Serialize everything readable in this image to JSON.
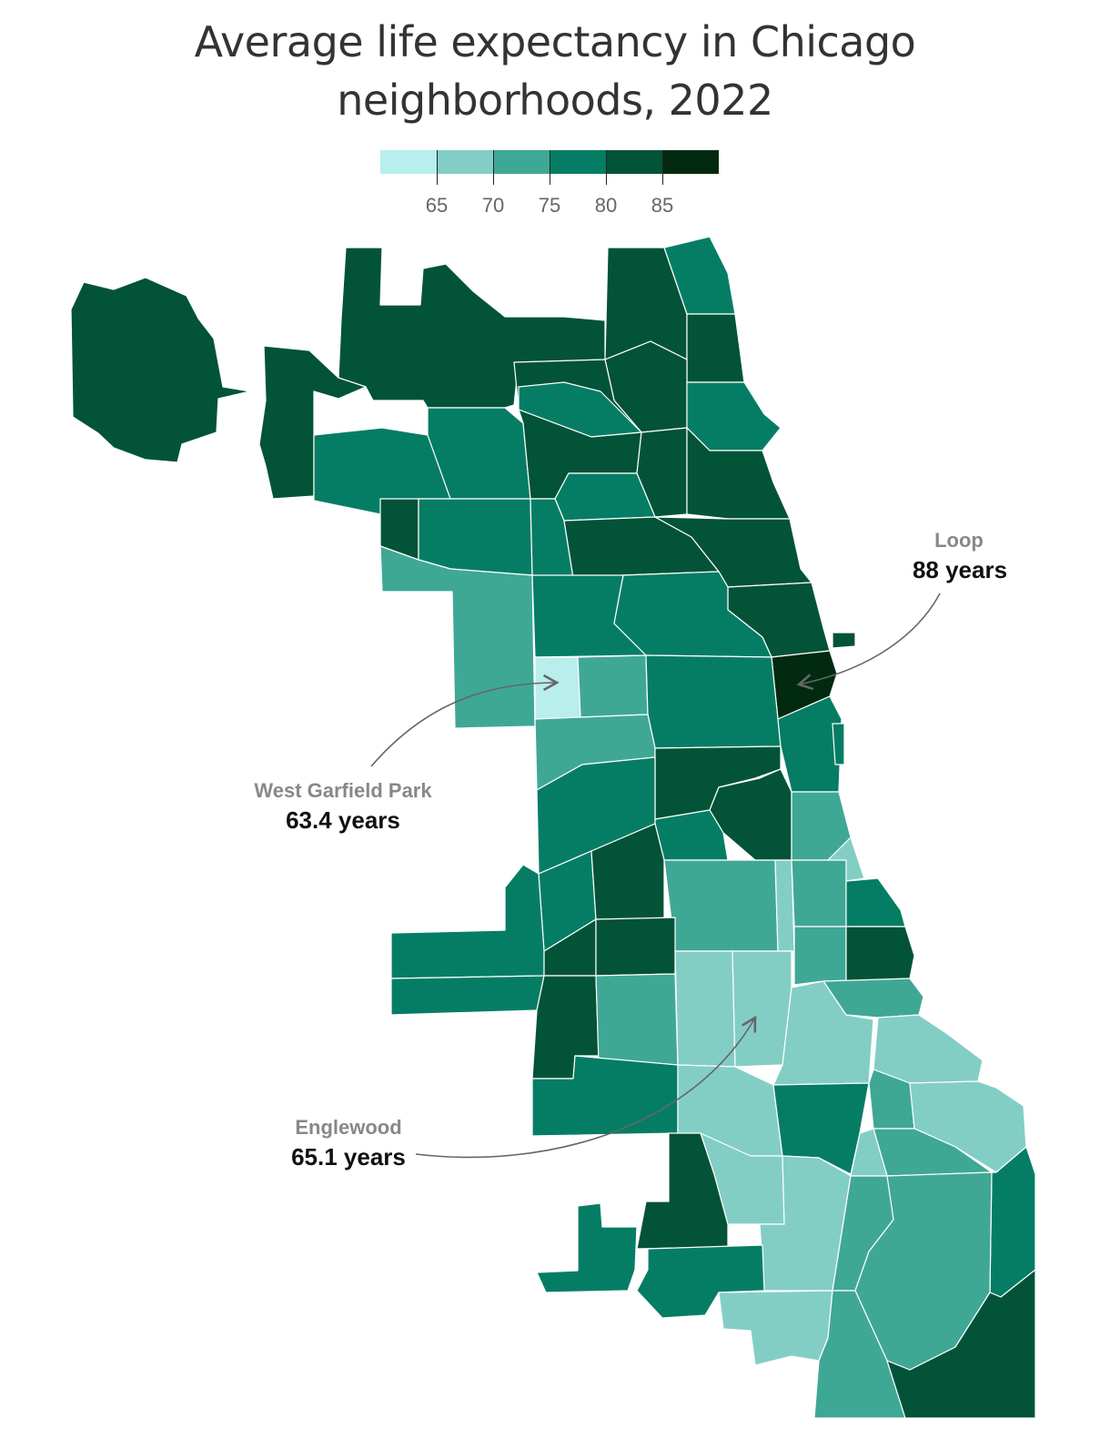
{
  "title": {
    "line1": "Average life expectancy in Chicago",
    "line2": "neighborhoods, 2022"
  },
  "legend": {
    "bins": [
      {
        "color": "#b8eeec"
      },
      {
        "color": "#82cec5"
      },
      {
        "color": "#3fa894"
      },
      {
        "color": "#057d64"
      },
      {
        "color": "#025338"
      },
      {
        "color": "#012a10"
      }
    ],
    "ticks": [
      "65",
      "70",
      "75",
      "80",
      "85"
    ]
  },
  "annotations": {
    "loop": {
      "name": "Loop",
      "value": "88 years"
    },
    "west_garfield": {
      "name": "West Garfield Park",
      "value": "63.4 years"
    },
    "englewood": {
      "name": "Englewood",
      "value": "65.1 years"
    }
  },
  "colors": {
    "border": "#ffffff",
    "arrow": "#666666"
  }
}
